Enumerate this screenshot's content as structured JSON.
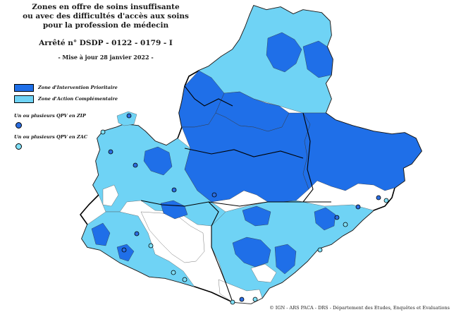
{
  "title": {
    "line1": "Zones en offre de soins insuffisante",
    "line2": "ou avec des difficultés d'accès aux soins",
    "line3": "pour la profession de médecin",
    "arrete": "Arrêté n° DSDP - 0122 - 0179 - I",
    "update": "- Mise à jour 28 janvier 2022 -"
  },
  "legend": {
    "zip_label": "Zone d'Intervention Prioritaire",
    "zac_label": "Zone d'Action Complémentaire",
    "qpv_zip_label": "Un ou plusieurs QPV en ZIP",
    "qpv_zac_label": "Un ou plusieurs QPV en ZAC"
  },
  "colors": {
    "zip": "#1f6fe8",
    "zac": "#6fd3f5",
    "none": "#ffffff",
    "border": "#000000",
    "qpv_zip_dot": "#2b6de0",
    "qpv_zac_dot": "#7fe0f8"
  },
  "credit": "© IGN - ARS PACA - DRS - Département des Etudes, Enquêtes et Evaluations"
}
